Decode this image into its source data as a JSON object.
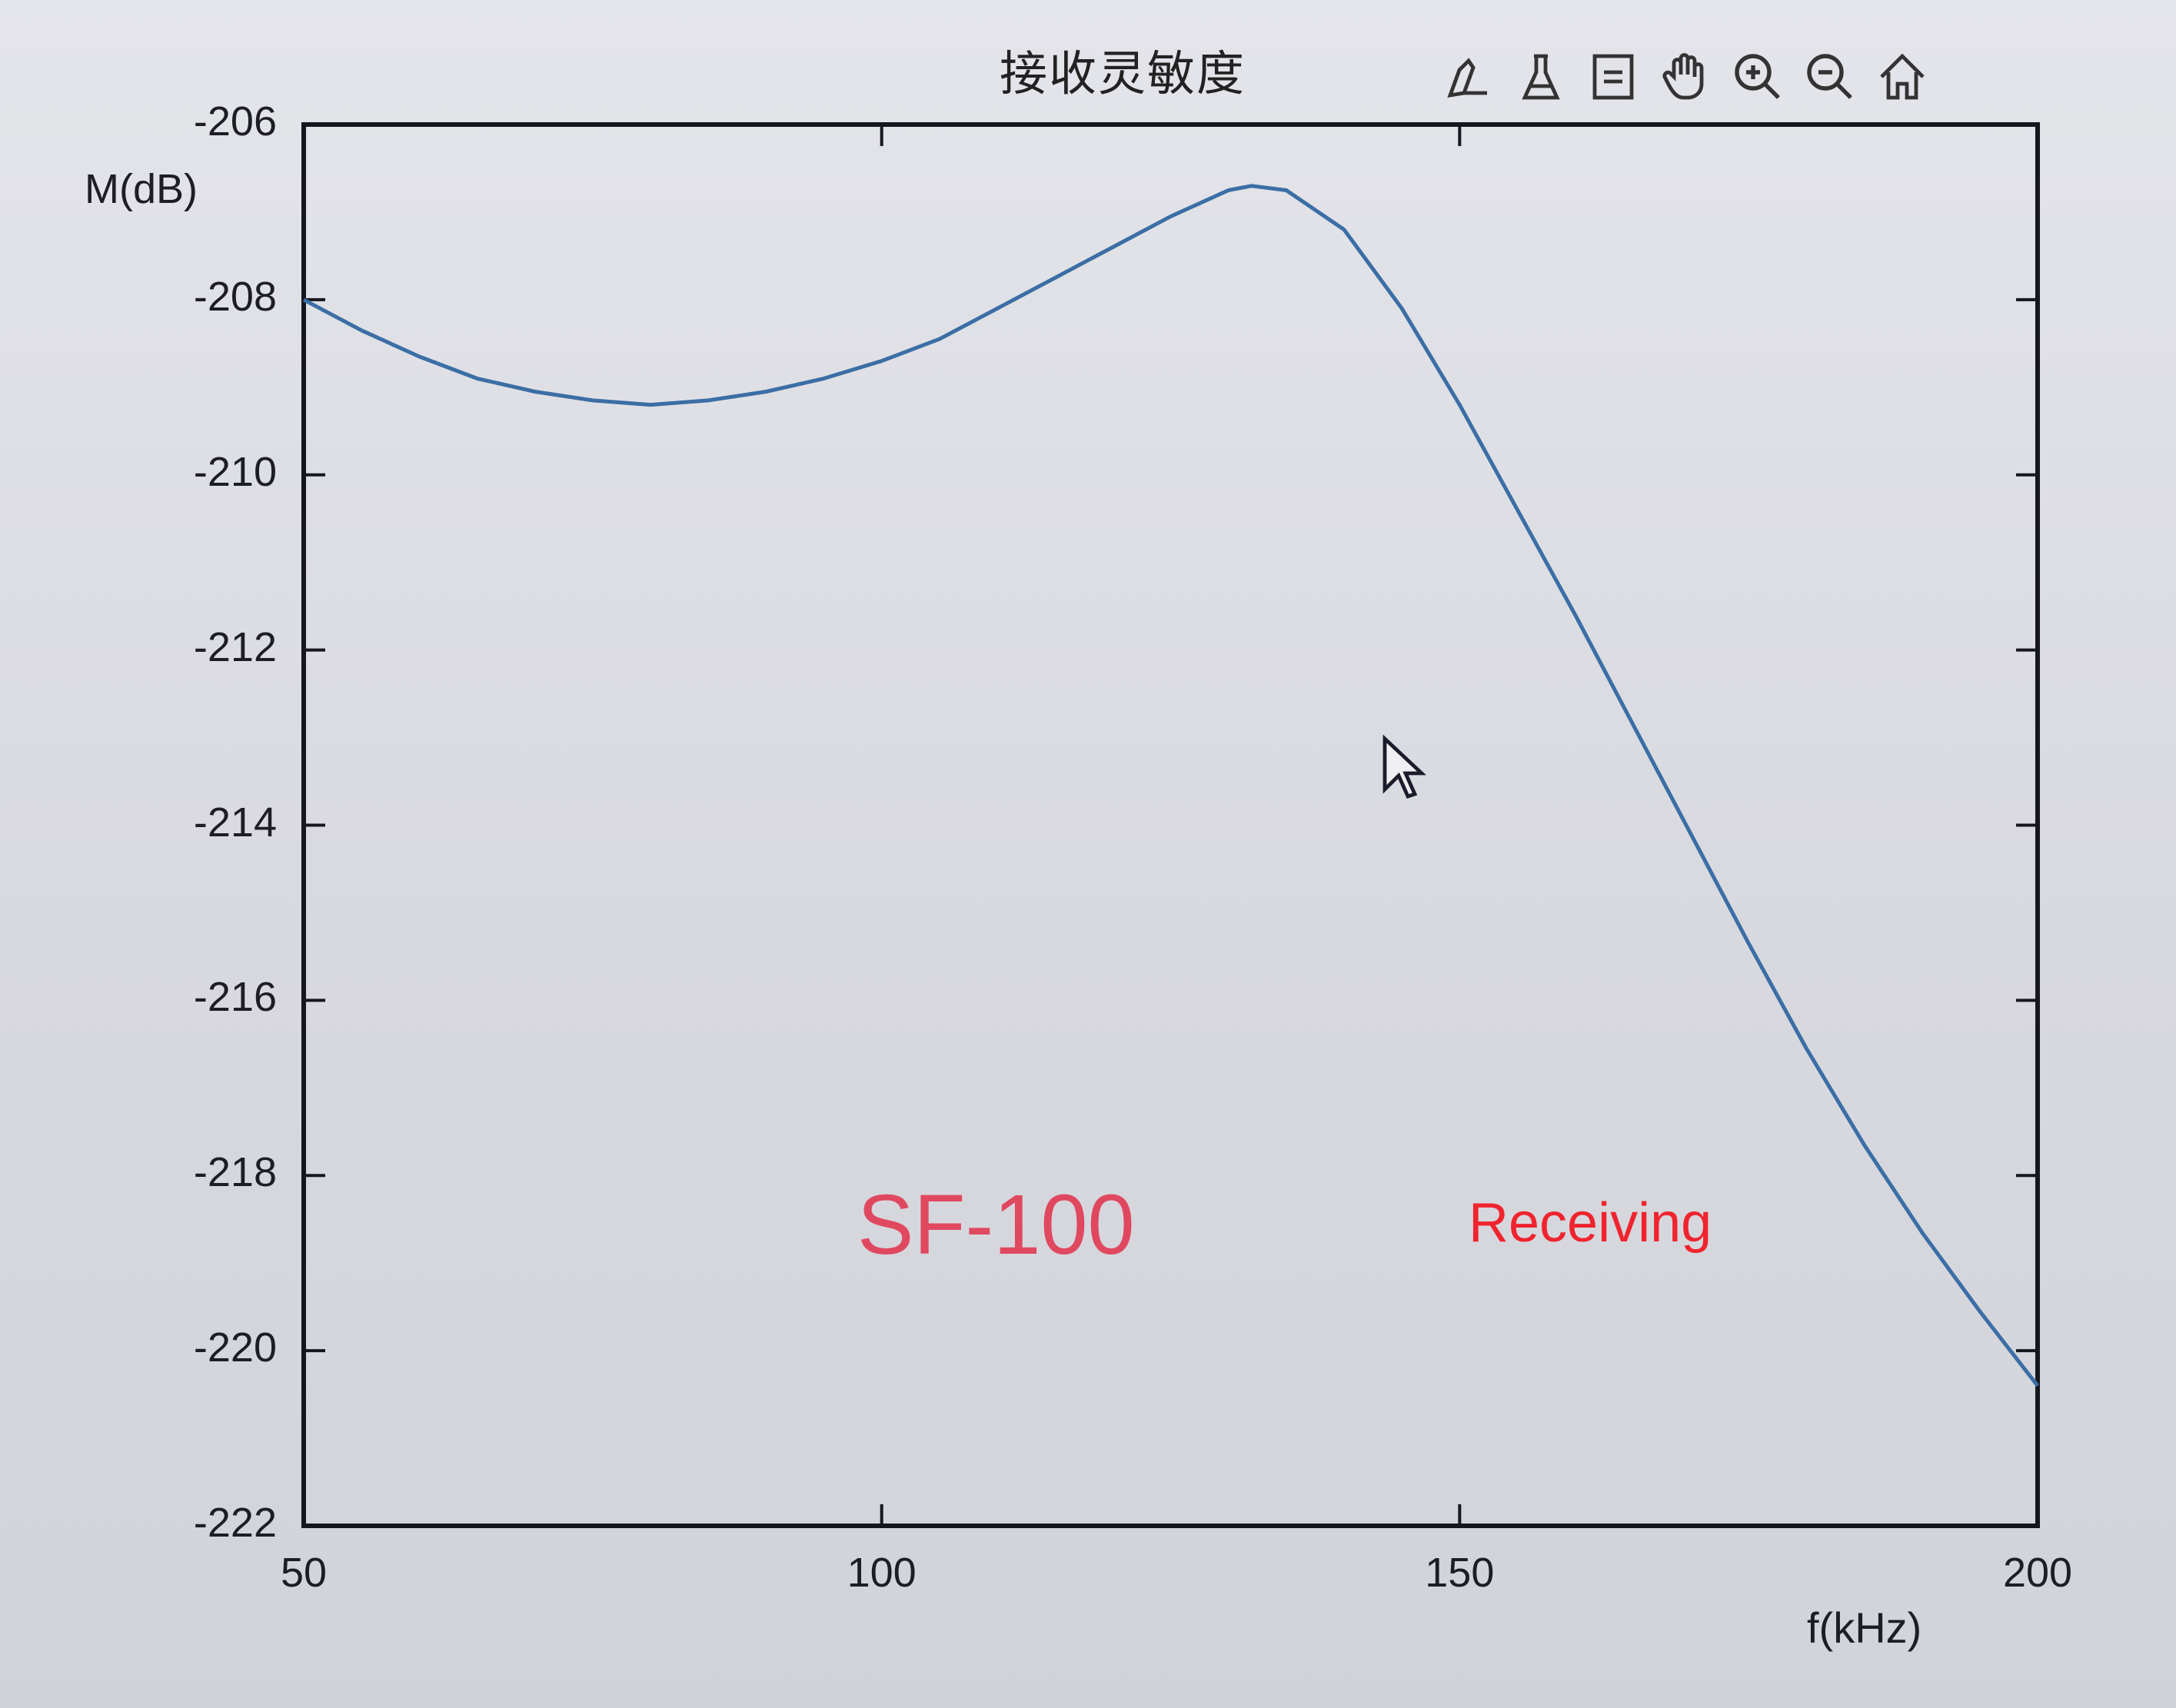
{
  "figure": {
    "title": "接收灵敏度",
    "toolbar": [
      {
        "name": "brush-icon",
        "label": "Brush"
      },
      {
        "name": "data-cursor-icon",
        "label": "Data Cursor"
      },
      {
        "name": "legend-icon",
        "label": "Legend"
      },
      {
        "name": "pan-hand-icon",
        "label": "Pan"
      },
      {
        "name": "zoom-in-icon",
        "label": "Zoom In"
      },
      {
        "name": "zoom-out-icon",
        "label": "Zoom Out"
      },
      {
        "name": "home-icon",
        "label": "Restore View"
      }
    ],
    "annotations": {
      "model": "SF-100",
      "mode": "Receiving"
    },
    "colors": {
      "line": "#3b6ea5",
      "axis": "#16161e",
      "model_text": "#e0485f",
      "mode_text": "#f0242e"
    }
  },
  "chart_data": {
    "type": "line",
    "title": "接收灵敏度",
    "xlabel": "f(kHz)",
    "ylabel": "M(dB)",
    "xlim": [
      50,
      200
    ],
    "ylim": [
      -222,
      -206
    ],
    "xticks": [
      50,
      100,
      150,
      200
    ],
    "yticks": [
      -206,
      -208,
      -210,
      -212,
      -214,
      -216,
      -218,
      -220,
      -222
    ],
    "grid": false,
    "legend": null,
    "series": [
      {
        "name": "Receiving sensitivity",
        "x": [
          50,
          55,
          60,
          65,
          70,
          75,
          80,
          85,
          90,
          95,
          100,
          105,
          110,
          115,
          120,
          125,
          130,
          132,
          135,
          140,
          145,
          150,
          155,
          160,
          165,
          170,
          175,
          180,
          185,
          190,
          195,
          200
        ],
        "y": [
          -208.0,
          -208.35,
          -208.65,
          -208.9,
          -209.05,
          -209.15,
          -209.2,
          -209.15,
          -209.05,
          -208.9,
          -208.7,
          -208.45,
          -208.1,
          -207.75,
          -207.4,
          -207.05,
          -206.75,
          -206.7,
          -206.75,
          -207.2,
          -208.1,
          -209.2,
          -210.4,
          -211.6,
          -212.85,
          -214.1,
          -215.35,
          -216.55,
          -217.65,
          -218.65,
          -219.55,
          -220.4
        ]
      }
    ]
  }
}
